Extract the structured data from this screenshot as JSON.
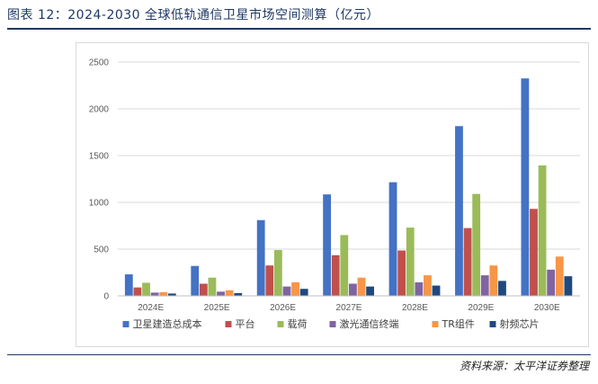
{
  "header": {
    "title": "图表 12：2024-2030 全球低轨通信卫星市场空间测算（亿元）"
  },
  "footer": {
    "source": "资料来源：太平洋证券整理"
  },
  "chart_data": {
    "type": "bar",
    "categories": [
      "2024E",
      "2025E",
      "2026E",
      "2027E",
      "2028E",
      "2029E",
      "2030E"
    ],
    "ylim": [
      0,
      2500
    ],
    "yticks": [
      0,
      500,
      1000,
      1500,
      2000,
      2500
    ],
    "grid": true,
    "legend_position": "bottom",
    "series": [
      {
        "name": "卫星建造总成本",
        "color": "#4472c4",
        "values": [
          230,
          320,
          810,
          1085,
          1215,
          1815,
          2325
        ]
      },
      {
        "name": "平台",
        "color": "#c0504d",
        "values": [
          90,
          130,
          325,
          435,
          485,
          725,
          930
        ]
      },
      {
        "name": "载荷",
        "color": "#9bbb59",
        "values": [
          140,
          195,
          490,
          650,
          730,
          1090,
          1395
        ]
      },
      {
        "name": "激光通信终端",
        "color": "#8064a2",
        "values": [
          35,
          45,
          100,
          130,
          145,
          220,
          280
        ]
      },
      {
        "name": "TR组件",
        "color": "#f79646",
        "values": [
          40,
          60,
          145,
          195,
          220,
          325,
          420
        ]
      },
      {
        "name": "射频芯片",
        "color": "#1f497d",
        "values": [
          25,
          30,
          75,
          100,
          110,
          160,
          210
        ]
      }
    ]
  }
}
